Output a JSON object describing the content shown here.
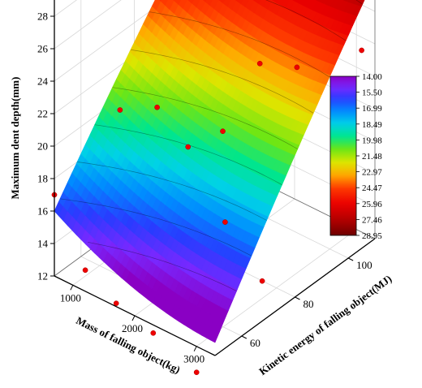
{
  "chart_data": {
    "type": "surface3d",
    "xlabel": "Mass of falling object(kg)",
    "ylabel": "Kinetic energy of falling object(MJ)",
    "zlabel": "Maximum dent depth(mm)",
    "x_ticks": [
      1000,
      2000,
      3000
    ],
    "y_ticks": [
      60,
      80,
      100
    ],
    "z_ticks": [
      12,
      14,
      16,
      18,
      20,
      22,
      24,
      26,
      28
    ],
    "xlim": [
      700,
      3300
    ],
    "ylim": [
      50,
      110
    ],
    "zlim": [
      12,
      29
    ],
    "surface": {
      "x_range": [
        700,
        3300
      ],
      "y_range": [
        50,
        110
      ],
      "z_corners": {
        "xmin_ymin": 16.0,
        "xmax_ymin": 12.8,
        "xmax_ymax": 28.1,
        "xmin_ymax": 29.0
      }
    },
    "colorbar": {
      "labels": [
        "14.00",
        "15.50",
        "16.99",
        "18.49",
        "19.98",
        "21.48",
        "22.97",
        "24.47",
        "25.96",
        "27.46",
        "28.95"
      ],
      "min": 14.0,
      "max": 28.95,
      "reversed": true
    },
    "points": [
      {
        "x": 700,
        "y": 50,
        "z": 17.0
      },
      {
        "x": 1200,
        "y": 50,
        "z": 13.3
      },
      {
        "x": 1700,
        "y": 50,
        "z": 12.2
      },
      {
        "x": 2300,
        "y": 50,
        "z": 11.5
      },
      {
        "x": 3000,
        "y": 50,
        "z": 10.4
      },
      {
        "x": 900,
        "y": 70,
        "z": 20.2
      },
      {
        "x": 1500,
        "y": 70,
        "z": 21.5
      },
      {
        "x": 2000,
        "y": 70,
        "z": 20.0
      },
      {
        "x": 2600,
        "y": 70,
        "z": 16.5
      },
      {
        "x": 3200,
        "y": 70,
        "z": 14.0
      },
      {
        "x": 1700,
        "y": 90,
        "z": 18.0
      },
      {
        "x": 2300,
        "y": 90,
        "z": 23.3
      },
      {
        "x": 2900,
        "y": 90,
        "z": 24.2
      },
      {
        "x": 1600,
        "y": 105,
        "z": 25.0
      },
      {
        "x": 2700,
        "y": 105,
        "z": 26.5
      },
      {
        "x": 3300,
        "y": 105,
        "z": 24.2
      },
      {
        "x": 1300,
        "y": 100,
        "z": 28.8
      },
      {
        "x": 2400,
        "y": 110,
        "z": 29.8
      },
      {
        "x": 3300,
        "y": 110,
        "z": 27.8
      },
      {
        "x": 3300,
        "y": 95,
        "z": 22.0
      }
    ]
  }
}
